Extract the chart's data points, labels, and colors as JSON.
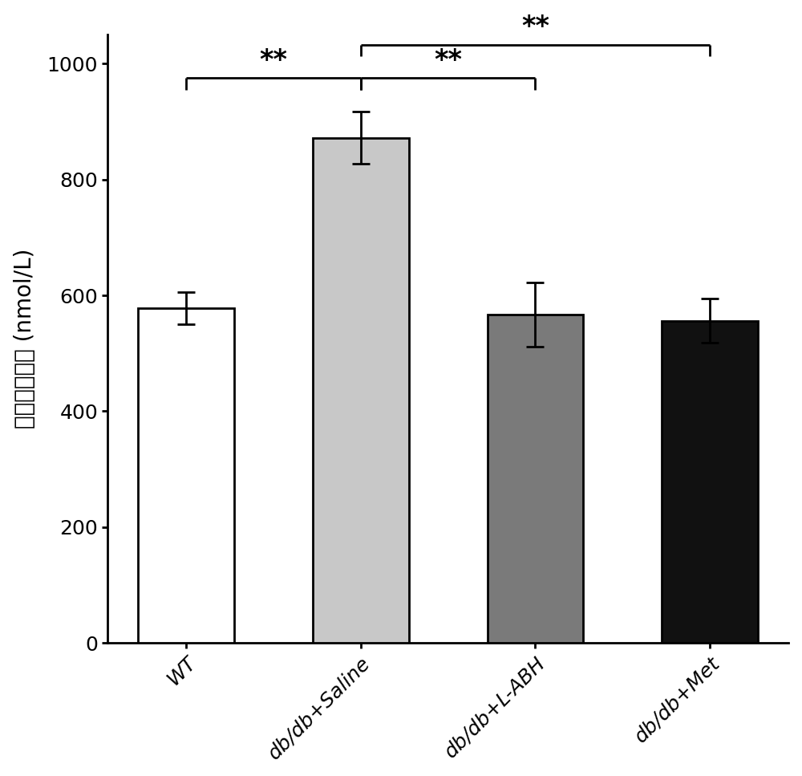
{
  "categories": [
    "WT",
    "db/db+Saline",
    "db/db+L-ABH",
    "db/db+Met"
  ],
  "values": [
    578,
    872,
    567,
    556
  ],
  "errors": [
    28,
    45,
    55,
    38
  ],
  "bar_colors": [
    "#ffffff",
    "#c8c8c8",
    "#7a7a7a",
    "#111111"
  ],
  "bar_edgecolors": [
    "#000000",
    "#000000",
    "#000000",
    "#000000"
  ],
  "ylabel": "糖化血红蛋白 (nmol/L)",
  "ylim": [
    0,
    1050
  ],
  "yticks": [
    0,
    200,
    400,
    600,
    800,
    1000
  ],
  "bar_width": 0.55,
  "figsize": [
    10.0,
    9.67
  ],
  "dpi": 100,
  "tick_fontsize": 18,
  "label_fontsize": 20,
  "sig_fontsize": 24
}
